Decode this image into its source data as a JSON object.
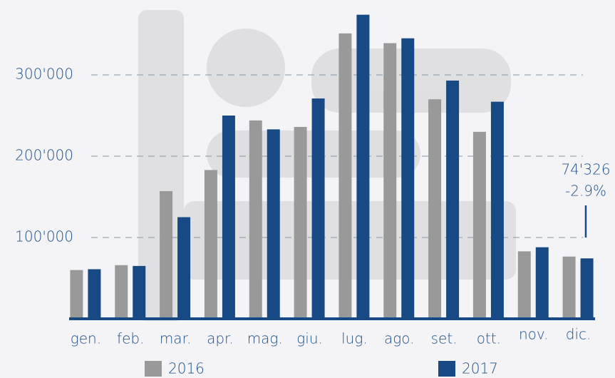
{
  "chart_data": {
    "type": "bar",
    "categories": [
      "gen.",
      "feb.",
      "mar.",
      "apr.",
      "mag.",
      "giu.",
      "lug.",
      "ago.",
      "set.",
      "ott.",
      "nov.",
      "dic."
    ],
    "series": [
      {
        "name": "2016",
        "color": "#999999",
        "values": [
          60000,
          66000,
          157000,
          183000,
          244000,
          236000,
          351000,
          339000,
          270000,
          230000,
          83000,
          76546
        ]
      },
      {
        "name": "2017",
        "color": "#174a84",
        "values": [
          61000,
          65000,
          125000,
          250000,
          233000,
          271000,
          374000,
          345000,
          293000,
          267000,
          88000,
          74326
        ]
      }
    ],
    "ylim": [
      0,
      390000
    ],
    "yticks": [
      {
        "value": 100000,
        "label": "100'000"
      },
      {
        "value": 200000,
        "label": "200'000"
      },
      {
        "value": 300000,
        "label": "300'000"
      }
    ],
    "grid": true,
    "annotations": [
      "74'326",
      "-2.9%"
    ]
  }
}
